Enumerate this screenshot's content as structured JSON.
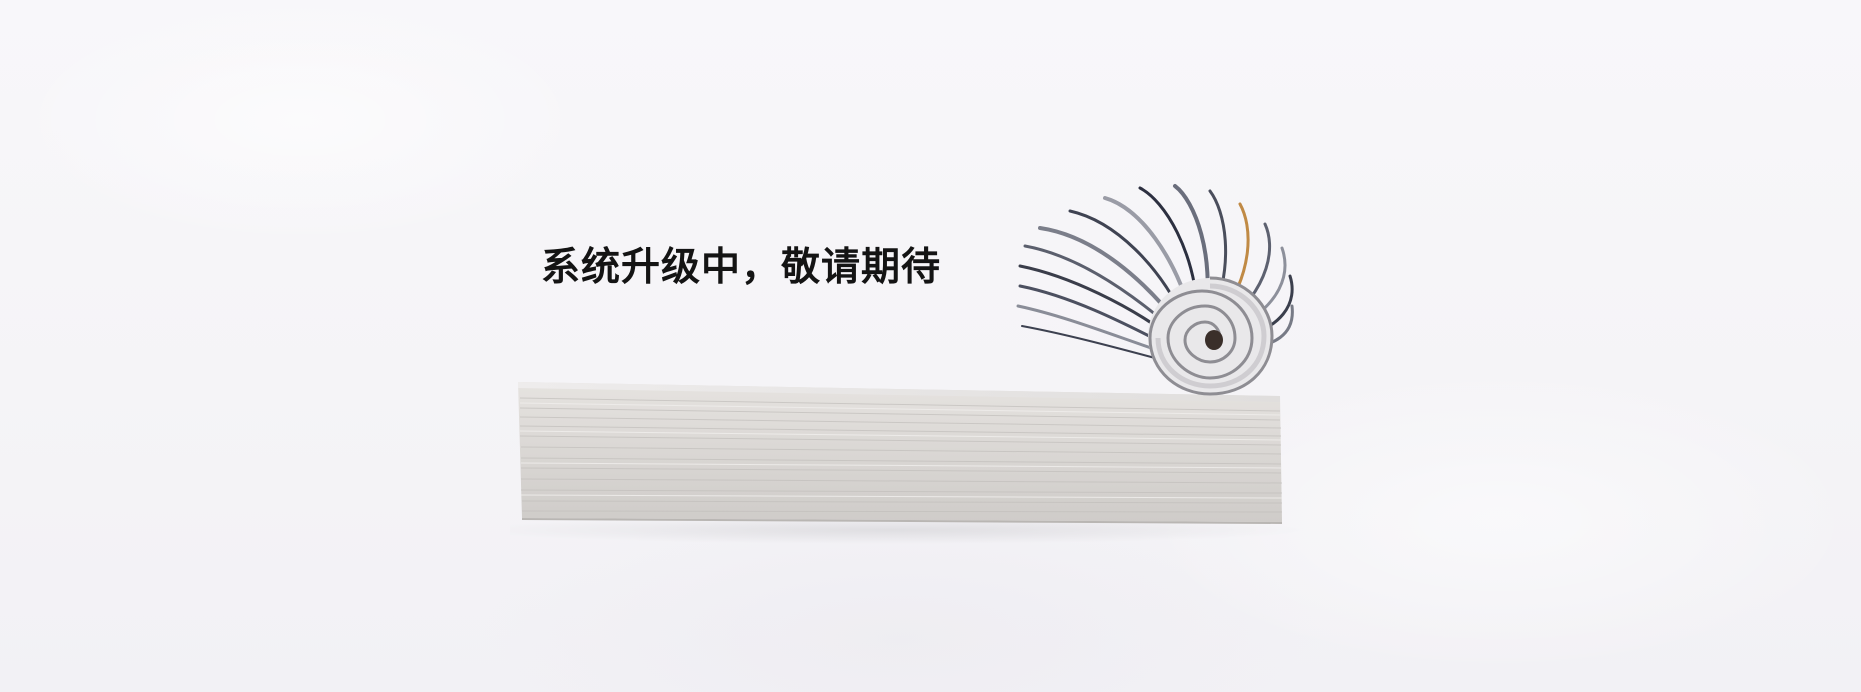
{
  "page": {
    "headline": "系统升级中，敬请期待"
  },
  "colors": {
    "background": "#f7f6f9",
    "text": "#141414",
    "paper_edge": "#dcdad8"
  },
  "illustration": {
    "icon": "book-with-rolled-magazine-icon"
  }
}
